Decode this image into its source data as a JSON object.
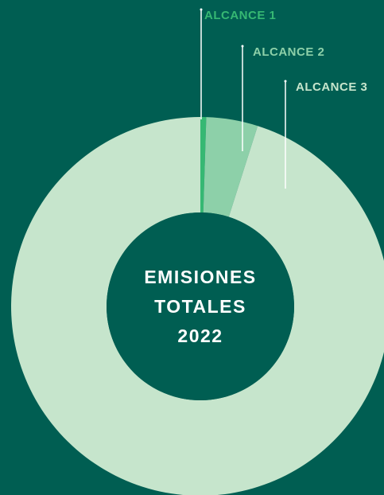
{
  "chart_data": {
    "type": "donut",
    "categories": [
      "ALCANCE 1",
      "ALCANCE 2",
      "ALCANCE 3"
    ],
    "values": [
      0.5,
      4.4,
      95.1
    ],
    "colors": [
      "#36b873",
      "#8dd0a9",
      "#c6e5cc"
    ],
    "center_text": [
      "EMISIONES",
      "TOTALES",
      "2022"
    ]
  }
}
